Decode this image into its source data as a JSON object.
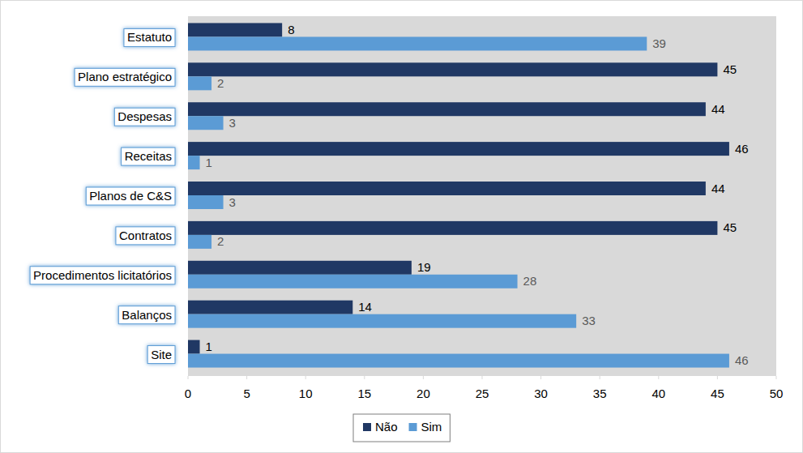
{
  "chart_data": {
    "type": "bar",
    "orientation": "horizontal",
    "categories": [
      "Estatuto",
      "Plano estratégico",
      "Despesas",
      "Receitas",
      "Planos de C&S",
      "Contratos",
      "Procedimentos licitatórios",
      "Balanços",
      "Site"
    ],
    "series": [
      {
        "name": "Não",
        "color": "#203864",
        "values": [
          8,
          45,
          44,
          46,
          44,
          45,
          19,
          14,
          1
        ]
      },
      {
        "name": "Sim",
        "color": "#5b9bd5",
        "values": [
          39,
          2,
          3,
          1,
          3,
          2,
          28,
          33,
          46
        ]
      }
    ],
    "xlim": [
      0,
      50
    ],
    "xticks": [
      0,
      5,
      10,
      15,
      20,
      25,
      30,
      35,
      40,
      45,
      50
    ],
    "data_labels": true,
    "legend": "bottom",
    "grid": false
  }
}
